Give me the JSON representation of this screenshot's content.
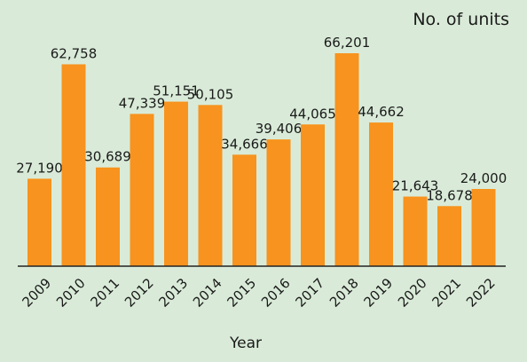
{
  "chart_data": {
    "type": "bar",
    "ylabel": "No. of units",
    "xlabel": "Year",
    "categories": [
      "2009",
      "2010",
      "2011",
      "2012",
      "2013",
      "2014",
      "2015",
      "2016",
      "2017",
      "2018",
      "2019",
      "2020",
      "2021",
      "2022"
    ],
    "values": [
      27190,
      62758,
      30689,
      47339,
      51151,
      50105,
      34666,
      39406,
      44065,
      66201,
      44662,
      21643,
      18678,
      24000
    ],
    "value_labels": [
      "27,190",
      "62,758",
      "30,689",
      "47,339",
      "51,151",
      "50,105",
      "34,666",
      "39,406",
      "44,065",
      "66,201",
      "44,662",
      "21,643",
      "18,678",
      "24,000"
    ],
    "ylim": [
      0,
      66201
    ],
    "grid": false,
    "colors": {
      "background": "#d9ebd8",
      "bar": "#f7931e",
      "axis": "#222222",
      "text": "#1a1a1a"
    }
  }
}
